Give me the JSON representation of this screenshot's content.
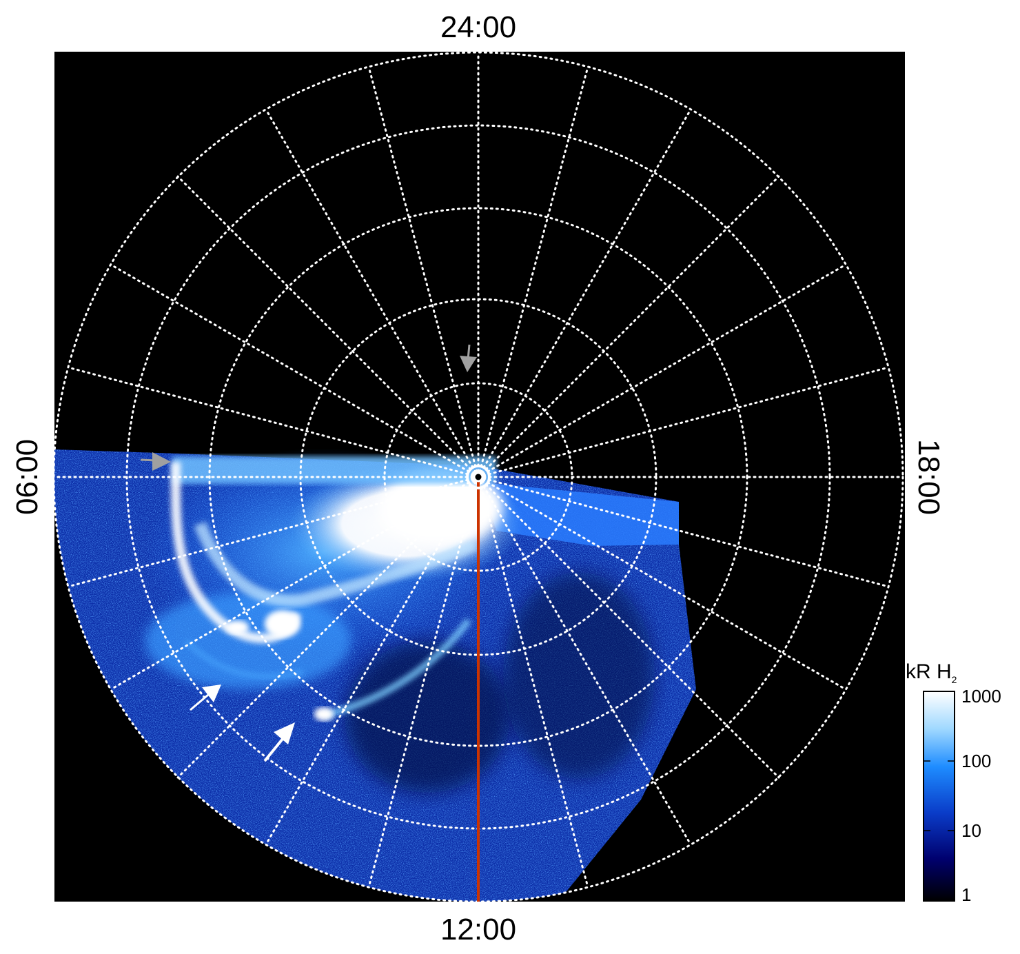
{
  "image": {
    "kind": "polar projection of ultraviolet auroral emission",
    "background": "#000000"
  },
  "local_time_labels": {
    "top": "24:00",
    "bottom": "12:00",
    "left": "06:00",
    "right": "18:00"
  },
  "colorbar": {
    "title": "kR H",
    "title_sub": "2",
    "ticks": [
      "1000",
      "100",
      "10",
      "1"
    ],
    "colors": [
      "#ffffff",
      "#7fcfff",
      "#1e90ff",
      "#0a3cc8",
      "#000070",
      "#000000"
    ]
  },
  "colors": {
    "grid": "#ffffff",
    "meridian_line": "#cc3300",
    "arrow_white": "#ffffff",
    "arrow_gray": "#a0a0a0",
    "aurora_bright": "#ffffff",
    "aurora_mid": "#3aa0ff",
    "aurora_dim": "#1450d0"
  },
  "markers": [
    {
      "name": "gray-arrow-top",
      "color": "gray"
    },
    {
      "name": "gray-arrow-left",
      "color": "gray"
    },
    {
      "name": "white-arrow-lower-left",
      "color": "white"
    },
    {
      "name": "white-arrow-lower",
      "color": "white"
    }
  ]
}
